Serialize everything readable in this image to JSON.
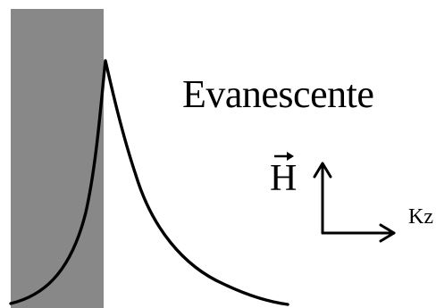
{
  "diagram": {
    "title": "Evanescente",
    "field_label": "H",
    "field_vector_marker": "vector-arrow",
    "axis_label": "Kz",
    "colors": {
      "medium_fill": "#888888",
      "curve": "#000000",
      "text": "#000000",
      "background": "#ffffff"
    },
    "icons": {
      "vertical_axis": "arrow-up-icon",
      "horizontal_axis": "arrow-right-icon"
    }
  }
}
